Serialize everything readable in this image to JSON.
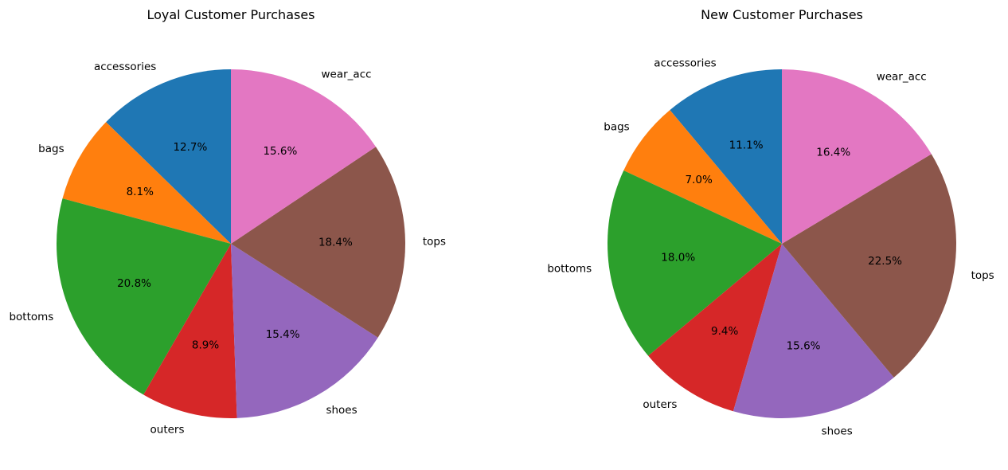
{
  "chart_data": [
    {
      "type": "pie",
      "title": "Loyal Customer Purchases",
      "categories": [
        "accessories",
        "bags",
        "bottoms",
        "outers",
        "shoes",
        "tops",
        "wear_acc"
      ],
      "values": [
        12.7,
        8.1,
        20.8,
        8.9,
        15.4,
        18.4,
        15.6
      ],
      "value_labels": [
        "12.7%",
        "8.1%",
        "20.8%",
        "8.9%",
        "15.4%",
        "18.4%",
        "15.6%"
      ],
      "start_angle": 90,
      "direction": "counterclockwise"
    },
    {
      "type": "pie",
      "title": "New Customer Purchases",
      "categories": [
        "accessories",
        "bags",
        "bottoms",
        "outers",
        "shoes",
        "tops",
        "wear_acc"
      ],
      "values": [
        11.1,
        7.0,
        18.0,
        9.4,
        15.6,
        22.5,
        16.4
      ],
      "value_labels": [
        "11.1%",
        "7.0%",
        "18.0%",
        "9.4%",
        "15.6%",
        "22.5%",
        "16.4%"
      ],
      "start_angle": 90,
      "direction": "counterclockwise"
    }
  ],
  "colors": [
    "#1f77b4",
    "#ff7f0e",
    "#2ca02c",
    "#d62728",
    "#9467bd",
    "#8c564b",
    "#e377c2"
  ]
}
